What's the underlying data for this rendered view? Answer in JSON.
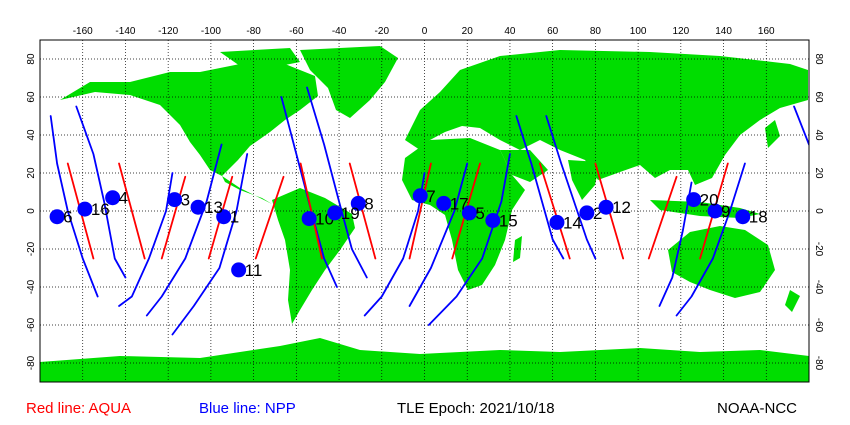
{
  "legend": {
    "aqua_label": "Red line: AQUA",
    "npp_label": "Blue line: NPP",
    "aqua_color": "#ff0000",
    "npp_color": "#0000ff"
  },
  "epoch_label": "TLE Epoch: 2021/10/18",
  "credit_label": "NOAA-NCC",
  "colors": {
    "land": "#00dd00",
    "ocean": "#ffffff",
    "marker": "#0000ff",
    "grid": "#000000"
  },
  "axes": {
    "lon_ticks": [
      "-160",
      "-140",
      "-120",
      "-100",
      "-80",
      "-60",
      "-40",
      "-20",
      "0",
      "20",
      "40",
      "60",
      "80",
      "100",
      "120",
      "140",
      "160"
    ],
    "lat_ticks_left": [
      "80",
      "60",
      "40",
      "20",
      "0",
      "-20",
      "-40",
      "-60",
      "-80"
    ],
    "lat_ticks_right": [
      "80",
      "60",
      "40",
      "20",
      "0",
      "-20",
      "-40",
      "-60",
      "-80"
    ],
    "lon_range": [
      -180,
      180
    ],
    "lat_range": [
      -90,
      90
    ],
    "grid": "dotted"
  },
  "chart_data": {
    "type": "map",
    "projection": "equirectangular",
    "satellites": [
      {
        "name": "AQUA",
        "color": "#ff0000"
      },
      {
        "name": "NPP",
        "color": "#0000ff"
      }
    ],
    "aqua_tracks": [
      {
        "lon": [
          -167.0,
          -155.0
        ],
        "lat": [
          25.0,
          -25.0
        ]
      },
      {
        "lon": [
          -143.0,
          -131.0
        ],
        "lat": [
          25.0,
          -25.0
        ]
      },
      {
        "lon": [
          -112.0,
          -123.0
        ],
        "lat": [
          18.0,
          -25.0
        ]
      },
      {
        "lon": [
          -90.0,
          -101.0
        ],
        "lat": [
          18.0,
          -25.0
        ]
      },
      {
        "lon": [
          -66.0,
          -79.0
        ],
        "lat": [
          18.0,
          -25.0
        ]
      },
      {
        "lon": [
          -58.0,
          -48.0
        ],
        "lat": [
          25.0,
          -25.0
        ]
      },
      {
        "lon": [
          -35.0,
          -23.0
        ],
        "lat": [
          25.0,
          -25.0
        ]
      },
      {
        "lon": [
          3.0,
          -7.0
        ],
        "lat": [
          25.0,
          -25.0
        ]
      },
      {
        "lon": [
          26.0,
          13.0
        ],
        "lat": [
          25.0,
          -25.0
        ]
      },
      {
        "lon": [
          54.0,
          68.0
        ],
        "lat": [
          25.0,
          -25.0
        ]
      },
      {
        "lon": [
          80.0,
          93.0
        ],
        "lat": [
          25.0,
          -25.0
        ]
      },
      {
        "lon": [
          118.0,
          105.0
        ],
        "lat": [
          18.0,
          -25.0
        ]
      },
      {
        "lon": [
          142.0,
          129.0
        ],
        "lat": [
          25.0,
          -25.0
        ]
      }
    ],
    "npp_tracks": [
      {
        "lon": [
          -175.0,
          -172.0,
          -167.0,
          -160.0,
          -153.0
        ],
        "lat": [
          50.0,
          25.0,
          0.0,
          -25.0,
          -45.0
        ]
      },
      {
        "lon": [
          -163.0,
          -155.0,
          -150.0,
          -145.0,
          -140.0
        ],
        "lat": [
          55.0,
          30.0,
          5.0,
          -25.0,
          -35.0
        ]
      },
      {
        "lon": [
          -118.0,
          -121.0,
          -129.0,
          -137.0,
          -143.0
        ],
        "lat": [
          20.0,
          0.0,
          -25.0,
          -45.0,
          -50.0
        ]
      },
      {
        "lon": [
          -95.0,
          -102.0,
          -112.0,
          -123.0,
          -130.0
        ],
        "lat": [
          35.0,
          5.0,
          -25.0,
          -45.0,
          -55.0
        ]
      },
      {
        "lon": [
          -83.0,
          -88.0,
          -96.0,
          -108.0,
          -118.0
        ],
        "lat": [
          30.0,
          0.0,
          -30.0,
          -50.0,
          -65.0
        ]
      },
      {
        "lon": [
          -67.0,
          -60.0,
          -53.0,
          -47.0,
          -41.0
        ],
        "lat": [
          60.0,
          30.0,
          0.0,
          -25.0,
          -40.0
        ]
      },
      {
        "lon": [
          -55.0,
          -47.0,
          -40.0,
          -34.0,
          -27.0
        ],
        "lat": [
          65.0,
          35.0,
          5.0,
          -20.0,
          -35.0
        ]
      },
      {
        "lon": [
          0.0,
          -3.0,
          -10.0,
          -20.0,
          -28.0
        ],
        "lat": [
          20.0,
          0.0,
          -25.0,
          -45.0,
          -55.0
        ]
      },
      {
        "lon": [
          20.0,
          14.0,
          3.0,
          -7.0
        ],
        "lat": [
          25.0,
          0.0,
          -30.0,
          -50.0
        ]
      },
      {
        "lon": [
          40.0,
          36.0,
          27.0,
          15.0,
          2.0
        ],
        "lat": [
          30.0,
          5.0,
          -25.0,
          -45.0,
          -60.0
        ]
      },
      {
        "lon": [
          43.0,
          50.0,
          55.0,
          60.0,
          65.0
        ],
        "lat": [
          50.0,
          25.0,
          5.0,
          -15.0,
          -25.0
        ]
      },
      {
        "lon": [
          57.0,
          64.0,
          70.0,
          76.0,
          80.0
        ],
        "lat": [
          50.0,
          25.0,
          5.0,
          -15.0,
          -25.0
        ]
      },
      {
        "lon": [
          125.0,
          121.0,
          116.0,
          110.0
        ],
        "lat": [
          15.0,
          -10.0,
          -35.0,
          -50.0
        ]
      },
      {
        "lon": [
          150.0,
          143.0,
          135.0,
          125.0,
          118.0
        ],
        "lat": [
          25.0,
          0.0,
          -25.0,
          -45.0,
          -55.0
        ]
      },
      {
        "lon": [
          173.0,
          180.0
        ],
        "lat": [
          55.0,
          35.0
        ]
      }
    ],
    "markers": [
      {
        "id": "1",
        "lon": -94.0,
        "lat": -3.0
      },
      {
        "id": "2",
        "lon": 76.0,
        "lat": -1.0
      },
      {
        "id": "3",
        "lon": -117.0,
        "lat": 6.0
      },
      {
        "id": "4",
        "lon": -146.0,
        "lat": 7.0
      },
      {
        "id": "5",
        "lon": 21.0,
        "lat": -1.0
      },
      {
        "id": "6",
        "lon": -172.0,
        "lat": -3.0
      },
      {
        "id": "7",
        "lon": -2.0,
        "lat": 8.0
      },
      {
        "id": "8",
        "lon": -31.0,
        "lat": 4.0
      },
      {
        "id": "9",
        "lon": 136.0,
        "lat": 0.0
      },
      {
        "id": "10",
        "lon": -54.0,
        "lat": -4.0
      },
      {
        "id": "11",
        "lon": -87.0,
        "lat": -31.0
      },
      {
        "id": "12",
        "lon": 85.0,
        "lat": 2.0
      },
      {
        "id": "13",
        "lon": -106.0,
        "lat": 2.0
      },
      {
        "id": "14",
        "lon": 62.0,
        "lat": -6.0
      },
      {
        "id": "15",
        "lon": 32.0,
        "lat": -5.0
      },
      {
        "id": "16",
        "lon": -159.0,
        "lat": 1.0
      },
      {
        "id": "17",
        "lon": 9.0,
        "lat": 4.0
      },
      {
        "id": "18",
        "lon": 149.0,
        "lat": -3.0
      },
      {
        "id": "19",
        "lon": -42.0,
        "lat": -1.0
      },
      {
        "id": "20",
        "lon": 126.0,
        "lat": 6.0
      }
    ]
  }
}
